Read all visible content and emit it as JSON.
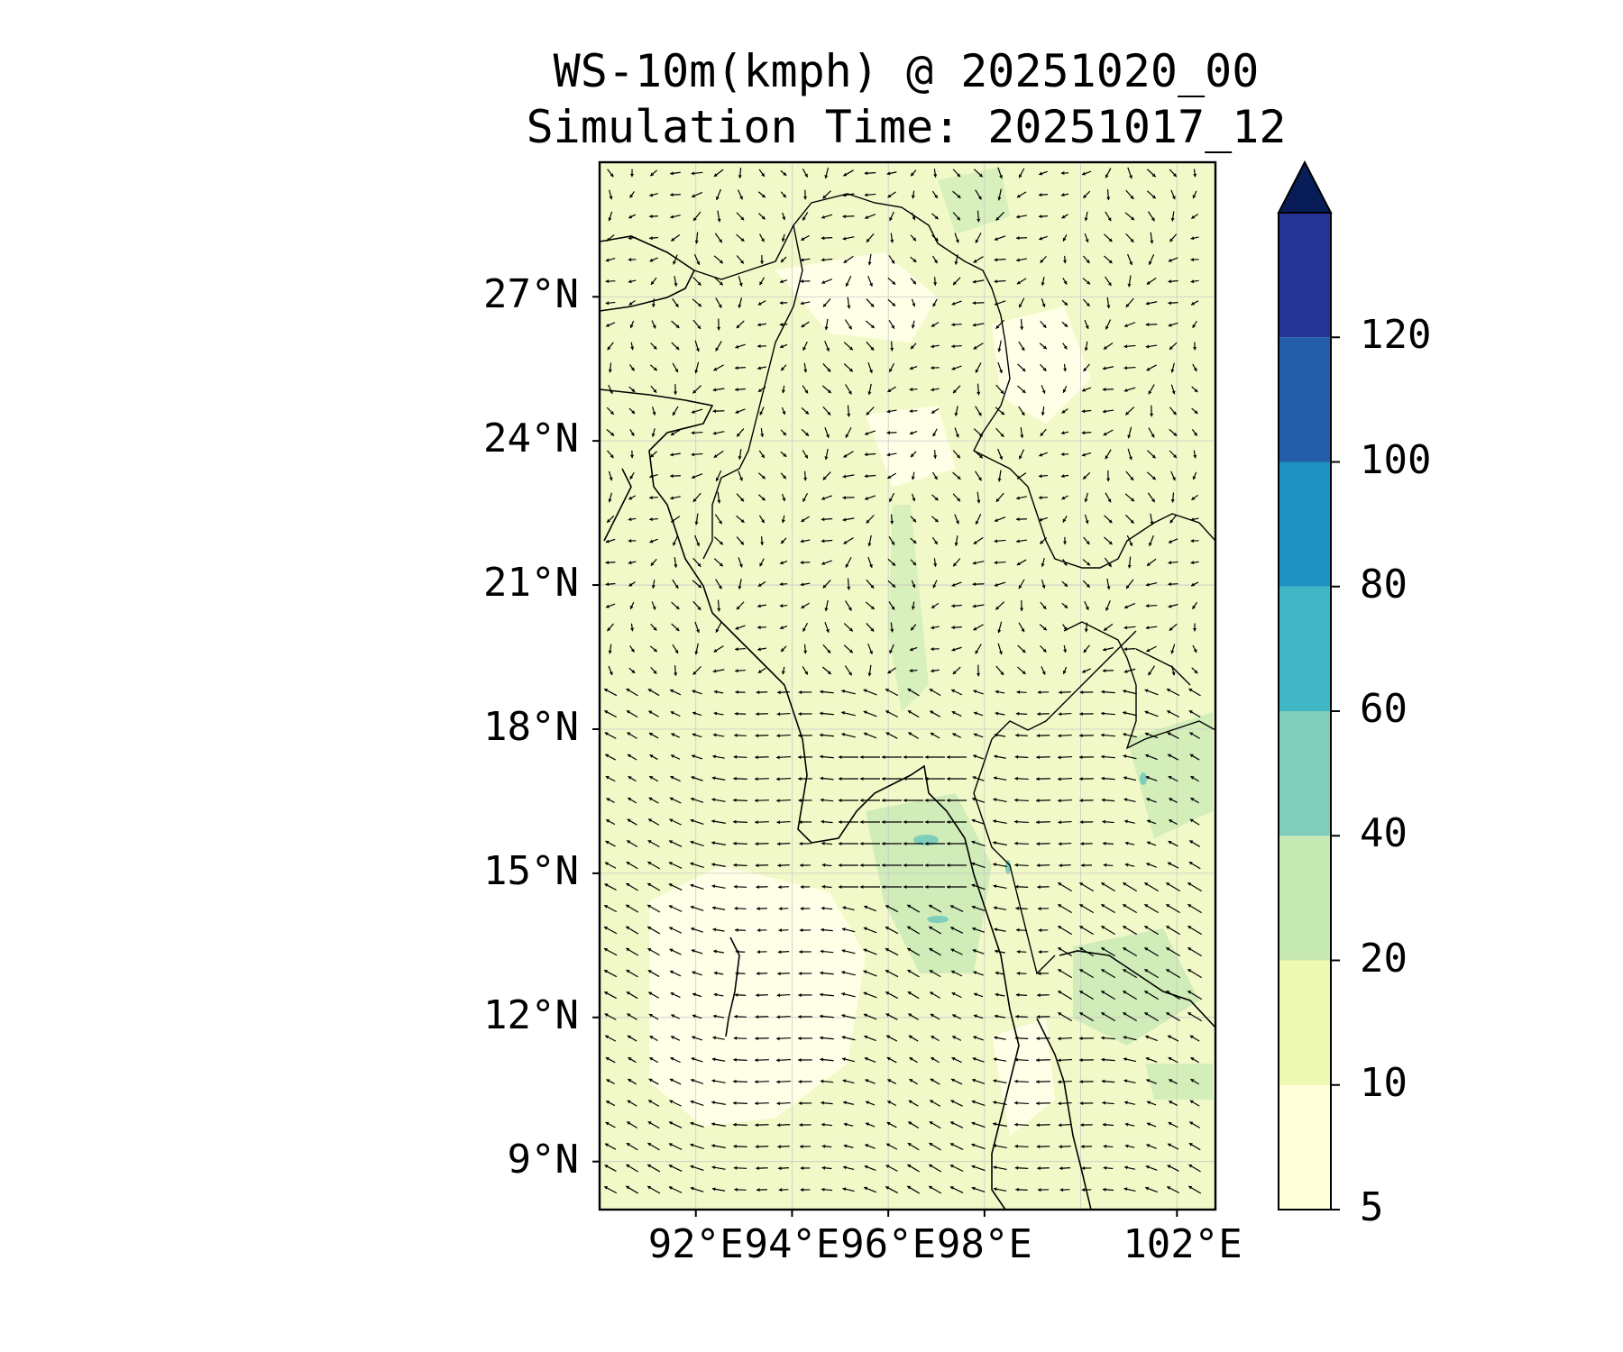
{
  "title": {
    "line1": "WS-10m(kmph) @ 20251020_00",
    "line2": "Simulation Time: 20251017_12"
  },
  "map": {
    "extent": {
      "lon_min": 90.0,
      "lon_max": 102.8,
      "lat_min": 8.0,
      "lat_max": 29.8
    },
    "lat_ticks": [
      {
        "value": 27,
        "label": "27°N"
      },
      {
        "value": 24,
        "label": "24°N"
      },
      {
        "value": 21,
        "label": "21°N"
      },
      {
        "value": 18,
        "label": "18°N"
      },
      {
        "value": 15,
        "label": "15°N"
      },
      {
        "value": 12,
        "label": "12°N"
      },
      {
        "value": 9,
        "label": "9°N"
      }
    ],
    "lon_ticks": [
      {
        "value": 92,
        "label": "92°E"
      },
      {
        "value": 94,
        "label": "94°E"
      },
      {
        "value": 96,
        "label": "96°E"
      },
      {
        "value": 98,
        "label": "98°E"
      },
      {
        "value": 102,
        "label": "102°E"
      }
    ],
    "gridlines": true,
    "vector_field": "wind arrows",
    "coastlines": true,
    "borders": true
  },
  "colorbar": {
    "levels": [
      5,
      10,
      20,
      40,
      60,
      80,
      100,
      120
    ],
    "labels": [
      "5",
      "10",
      "20",
      "40",
      "60",
      "80",
      "100",
      "120"
    ],
    "colors": [
      "#ffffd9",
      "#edf8b1",
      "#c7e9b4",
      "#7fcdbb",
      "#41b6c4",
      "#1d91c0",
      "#225ea8",
      "#253494"
    ],
    "extend_color": "#081d58",
    "extend": "max"
  }
}
